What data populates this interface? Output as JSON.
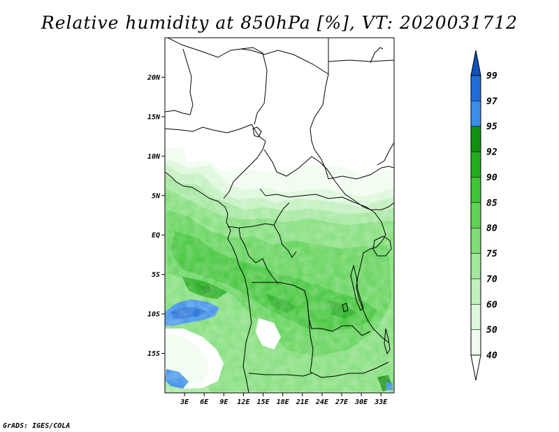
{
  "title": "Relative humidity at 850hPa [%], VT: 2020031712",
  "credit": "GrADS: IGES/COLA",
  "map": {
    "lon_range": [
      0,
      35
    ],
    "lat_range": [
      -20,
      25
    ],
    "lat_ticks": [
      {
        "value": 20,
        "label": "20N"
      },
      {
        "value": 15,
        "label": "15N"
      },
      {
        "value": 10,
        "label": "10N"
      },
      {
        "value": 5,
        "label": "5N"
      },
      {
        "value": 0,
        "label": "EQ"
      },
      {
        "value": -5,
        "label": "5S"
      },
      {
        "value": -10,
        "label": "10S"
      },
      {
        "value": -15,
        "label": "15S"
      }
    ],
    "lon_ticks": [
      {
        "value": 3,
        "label": "3E"
      },
      {
        "value": 6,
        "label": "6E"
      },
      {
        "value": 9,
        "label": "9E"
      },
      {
        "value": 12,
        "label": "12E"
      },
      {
        "value": 15,
        "label": "15E"
      },
      {
        "value": 18,
        "label": "18E"
      },
      {
        "value": 21,
        "label": "21E"
      },
      {
        "value": 24,
        "label": "24E"
      },
      {
        "value": 27,
        "label": "27E"
      },
      {
        "value": 30,
        "label": "30E"
      },
      {
        "value": 33,
        "label": "33E"
      }
    ]
  },
  "colorbar": {
    "bins": [
      {
        "from": 0,
        "to": 40,
        "color": "#ffffff"
      },
      {
        "from": 40,
        "to": 50,
        "color": "#f0fcef"
      },
      {
        "from": 50,
        "to": 60,
        "color": "#dcf7da"
      },
      {
        "from": 60,
        "to": 70,
        "color": "#c1f0bd"
      },
      {
        "from": 70,
        "to": 75,
        "color": "#a2e79c"
      },
      {
        "from": 75,
        "to": 80,
        "color": "#80dd78"
      },
      {
        "from": 80,
        "to": 85,
        "color": "#5fd256"
      },
      {
        "from": 85,
        "to": 90,
        "color": "#3ec435"
      },
      {
        "from": 90,
        "to": 92,
        "color": "#22ad1c"
      },
      {
        "from": 92,
        "to": 95,
        "color": "#11900f"
      },
      {
        "from": 95,
        "to": 97,
        "color": "#3a8ee8"
      },
      {
        "from": 97,
        "to": 99,
        "color": "#1f6ed8"
      },
      {
        "from": 99,
        "to": 100,
        "color": "#1150b8"
      }
    ],
    "labels": [
      "40",
      "50",
      "60",
      "70",
      "75",
      "80",
      "85",
      "90",
      "92",
      "95",
      "97",
      "99"
    ]
  }
}
